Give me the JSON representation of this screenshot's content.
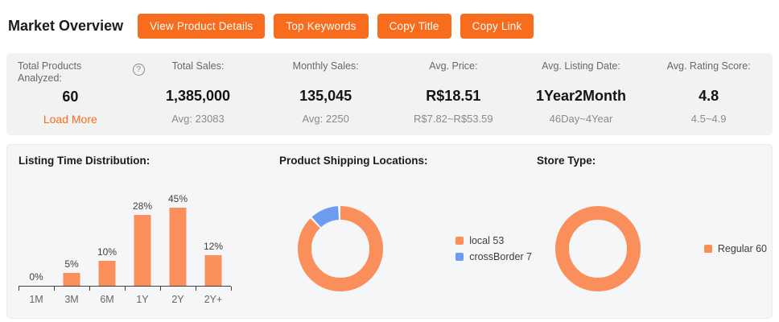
{
  "header": {
    "title": "Market Overview",
    "buttons": [
      "View Product Details",
      "Top Keywords",
      "Copy Title",
      "Copy Link"
    ]
  },
  "stats": {
    "help_glyph": "?",
    "cards": [
      {
        "label": "Total Products Analyzed:",
        "value": "60",
        "sub": "Load More",
        "has_help": true,
        "sub_is_link": true
      },
      {
        "label": "Total Sales:",
        "value": "1,385,000",
        "sub": "Avg: 23083"
      },
      {
        "label": "Monthly Sales:",
        "value": "135,045",
        "sub": "Avg: 2250"
      },
      {
        "label": "Avg. Price:",
        "value": "R$18.51",
        "sub": "R$7.82~R$53.59"
      },
      {
        "label": "Avg. Listing Date:",
        "value": "1Year2Month",
        "sub": "46Day~4Year"
      },
      {
        "label": "Avg. Rating Score:",
        "value": "4.8",
        "sub": "4.5~4.9"
      }
    ]
  },
  "chart_data": [
    {
      "type": "bar",
      "title": "Listing Time Distribution:",
      "categories": [
        "1M",
        "3M",
        "6M",
        "1Y",
        "2Y",
        "2Y+"
      ],
      "values": [
        0,
        5,
        10,
        28,
        45,
        12
      ],
      "labels": [
        "0%",
        "5%",
        "10%",
        "28%",
        "45%",
        "12%"
      ],
      "unit": "%",
      "xlabel": "",
      "ylabel": "",
      "ylim": [
        0,
        31
      ],
      "grid": false,
      "bar_color": "#fa8f5c",
      "note": "bars taller than ylim max are clipped at plot top (45% bar clipped)"
    },
    {
      "type": "donut",
      "title": "Product Shipping Locations:",
      "segments": [
        {
          "label": "local",
          "value": 53,
          "color": "#fa8f5c",
          "legend": "local 53"
        },
        {
          "label": "crossBorder",
          "value": 7,
          "color": "#6c9bf0",
          "legend": "crossBorder 7"
        }
      ],
      "legend_position": "right"
    },
    {
      "type": "donut",
      "title": "Store Type:",
      "segments": [
        {
          "label": "Regular",
          "value": 60,
          "color": "#fa8f5c",
          "legend": "Regular 60"
        }
      ],
      "legend_position": "right"
    }
  ],
  "colors": {
    "accent": "#f76c1d",
    "chart_orange": "#fa8f5c",
    "chart_blue": "#6c9bf0",
    "panel_gray": "#f2f2f3",
    "chart_panel_gray": "#f5f6f7"
  }
}
